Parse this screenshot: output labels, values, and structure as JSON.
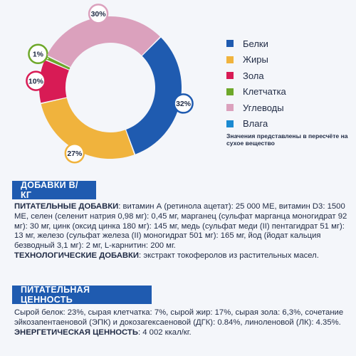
{
  "chart_data": {
    "type": "donut",
    "categories": [
      "Белки",
      "Жиры",
      "Зола",
      "Клетчатка",
      "Углеводы",
      "Влага"
    ],
    "values": [
      32,
      27,
      10,
      1,
      30,
      0
    ],
    "labels": [
      "32%",
      "27%",
      "10%",
      "1%",
      "30%",
      ""
    ],
    "colors": [
      "#1f5bb0",
      "#f0b33d",
      "#d81b55",
      "#6ea82a",
      "#dba1bd",
      "#1b8ad1"
    ],
    "legend_position": "right",
    "note": "Значения представлены в пересчёте на сухое вещество"
  },
  "sections": {
    "additives": {
      "title": "ДОБАВКИ В/КГ",
      "nutritional_label": "ПИТАТЕЛЬНЫЕ ДОБАВКИ",
      "nutritional_text": ": витамин А (ретинола ацетат): 25 000 МЕ, витамин D3: 1500 МЕ, селен (селенит натрия 0,98 мг): 0,45 мг, марганец (сульфат марганца моногидрат 92 мг): 30 мг, цинк (оксид цинка 180 мг): 145 мг, медь (сульфат меди (II) пентагидрат 51 мг): 13 мг, железо (сульфат железа (II) моногидрат 501 мг): 165 мг, йод (йодат кальция безводный 3,1 мг): 2 мг, L-карнитин: 200 мг.",
      "technological_label": "ТЕХНОЛОГИЧЕСКИЕ ДОБАВКИ",
      "technological_text": ": экстракт токоферолов из растительных масел."
    },
    "nutrition": {
      "title": "ПИТАТЕЛЬНАЯ ЦЕННОСТЬ",
      "text": "Сырой белок: 23%, сырая клетчатка: 7%, сырой жир: 17%, сырая зола: 6,3%, сочетание эйкозапентаеновой (ЭПК) и докозагексаеновой (ДГК): 0.84%, линоленовой (ЛК): 4.35%.",
      "energy_label": "ЭНЕРГЕТИЧЕСКАЯ ЦЕННОСТЬ",
      "energy_text": ": 4 002 ккал/кг."
    }
  }
}
